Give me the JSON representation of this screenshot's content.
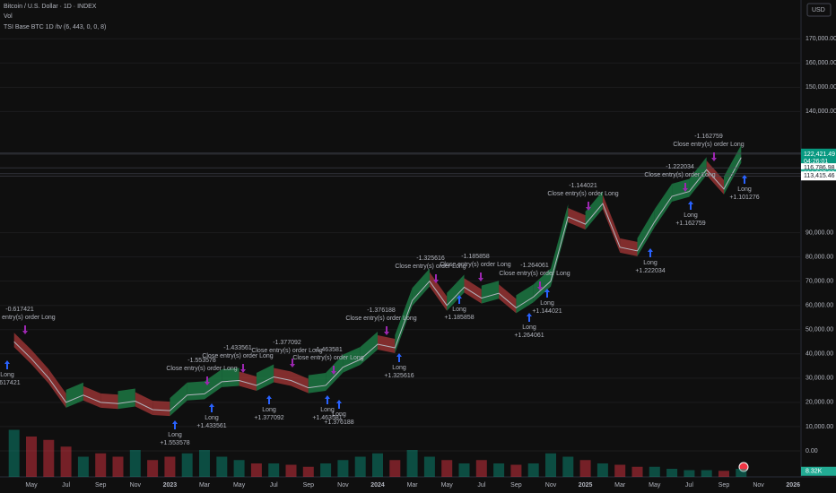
{
  "header": {
    "symbol": "Bitcoin / U.S. Dollar · 1D · INDEX",
    "indicator": "TSI Base BTC 1D /tv (6, 443, 0, 0, 8)",
    "currency": "USD"
  },
  "chart_data": {
    "type": "line",
    "categories": [
      null,
      "May",
      null,
      "Jul",
      null,
      "Sep",
      null,
      "Nov",
      null,
      "2023",
      null,
      "Mar",
      null,
      "May",
      null,
      "Jul",
      null,
      "Sep",
      null,
      "Nov",
      null,
      "2024",
      null,
      "Mar",
      null,
      "May",
      null,
      "Jul",
      null,
      "Sep",
      null,
      "Nov",
      null,
      "2025",
      null,
      "Mar",
      null,
      "May",
      null,
      "Jul",
      null,
      "Sep",
      null,
      "Nov",
      null,
      "2026"
    ],
    "series": [
      {
        "color": "#b2b5be",
        "values": [
          45000,
          38000,
          30000,
          20000,
          23000,
          20000,
          19500,
          20500,
          17000,
          16600,
          23000,
          23500,
          28500,
          29000,
          27000,
          30500,
          29000,
          26000,
          27000,
          34500,
          37700,
          44000,
          42500,
          62000,
          70000,
          60000,
          67500,
          63000,
          65000,
          59000,
          63500,
          70000,
          96500,
          93500,
          102000,
          84000,
          82500,
          94500,
          105000,
          107000,
          116000,
          108000,
          121000,
          null,
          null,
          null
        ]
      },
      {
        "name": "Vol",
        "axis": "y2",
        "color": "#f23645",
        "values": [
          70,
          60,
          55,
          45,
          30,
          35,
          30,
          40,
          25,
          30,
          35,
          40,
          30,
          25,
          20,
          20,
          18,
          15,
          20,
          25,
          30,
          35,
          25,
          40,
          30,
          25,
          20,
          25,
          20,
          18,
          20,
          35,
          30,
          25,
          20,
          18,
          15,
          15,
          12,
          10,
          10,
          9,
          12,
          null,
          null,
          null
        ]
      }
    ],
    "ylim": [
      -10000,
      186000
    ],
    "yticks": [
      {
        "value": 0,
        "label": "0.00"
      },
      {
        "value": 10000,
        "label": "10,000.00"
      },
      {
        "value": 20000,
        "label": "20,000.00"
      },
      {
        "value": 30000,
        "label": "30,000.00"
      },
      {
        "value": 40000,
        "label": "40,000.00"
      },
      {
        "value": 50000,
        "label": "50,000.00"
      },
      {
        "value": 60000,
        "label": "60,000.00"
      },
      {
        "value": 70000,
        "label": "70,000.00"
      },
      {
        "value": 80000,
        "label": "80,000.00"
      },
      {
        "value": 90000,
        "label": "90,000.00"
      },
      {
        "value": 140000,
        "label": "140,000.00"
      },
      {
        "value": 150000,
        "label": "150,000.00"
      },
      {
        "value": 160000,
        "label": "160,000.00"
      },
      {
        "value": 170000,
        "label": "170,000.00"
      }
    ],
    "y2lim": [
      0,
      200
    ],
    "grid": true,
    "price_tags": [
      {
        "value": 122821.06,
        "label": "122,821.06"
      },
      {
        "value": 122421.49,
        "label": "122,421.49"
      },
      {
        "value": 116786.98,
        "label": "116,786.98"
      },
      {
        "value": 114307.93,
        "label": "114,307.93"
      },
      {
        "value": 113415.46,
        "label": "113,415.46"
      }
    ],
    "countdown": "04:26:01",
    "volume_tag": {
      "value": 8.32,
      "label": "8.32K"
    },
    "trades": [
      {
        "entry": "Long",
        "entry_pnl": "0.617421",
        "exit": "Close entry(s) order Long",
        "exit_pnl": "-0.617421"
      },
      {
        "entry": "Long",
        "entry_pnl": "+1.553578",
        "exit": "Close entry(s) order Long",
        "exit_pnl": "-1.553578"
      },
      {
        "entry": "Long",
        "entry_pnl": "+1.433561",
        "exit": "Close entry(s) order Long",
        "exit_pnl": "-1.433561"
      },
      {
        "entry": "Long",
        "entry_pnl": "+1.377092",
        "exit": "Close entry(s) order Long",
        "exit_pnl": "-1.377092"
      },
      {
        "entry": "Long",
        "entry_pnl": "+1.463581",
        "exit": "Close entry(s) order Long",
        "exit_pnl": "-1.463581"
      },
      {
        "entry": "Long",
        "entry_pnl": "+1.376188",
        "exit": "Close entry(s) order Long",
        "exit_pnl": "-1.376188"
      },
      {
        "entry": "Long",
        "entry_pnl": "+1.325616",
        "exit": "Close entry(s) order Long",
        "exit_pnl": "-1.325616"
      },
      {
        "entry": "Long",
        "entry_pnl": "+1.185858",
        "exit": "Close entry(s) order Long",
        "exit_pnl": "-1.185858"
      },
      {
        "entry": "Long",
        "entry_pnl": "+1.264061",
        "exit": "Close entry(s) order Long",
        "exit_pnl": "-1.264061"
      },
      {
        "entry": "Long",
        "entry_pnl": "+1.144021",
        "exit": "Close entry(s) order Long",
        "exit_pnl": "-1.144021"
      },
      {
        "entry": "Long",
        "entry_pnl": "+1.222034",
        "exit": "Close entry(s) order Long",
        "exit_pnl": "-1.222034"
      },
      {
        "entry": "Long",
        "entry_pnl": "+1.162759",
        "exit": "Close entry(s) order Long",
        "exit_pnl": "-1.162759"
      },
      {
        "entry": "Long",
        "entry_pnl": "+1.101276"
      }
    ]
  }
}
